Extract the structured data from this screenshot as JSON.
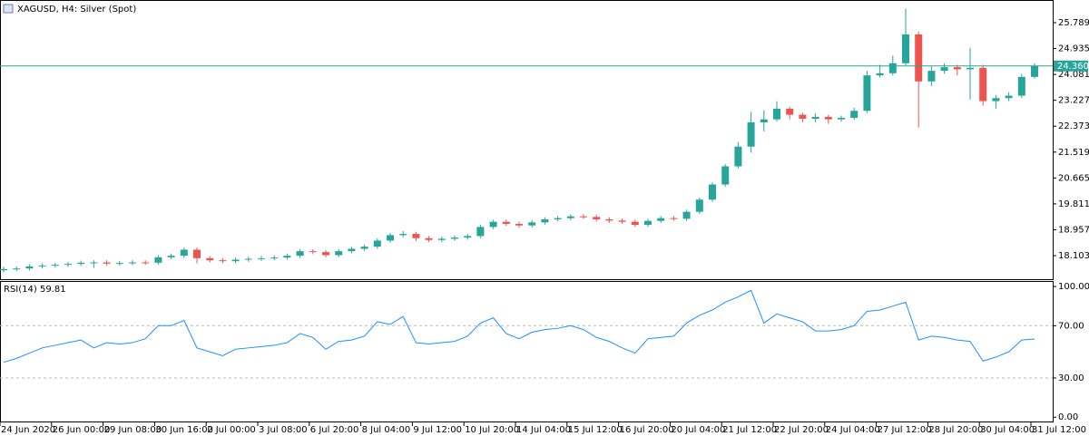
{
  "chart_data": [
    {
      "type": "candlestick",
      "title": "XAGUSD, H4:  Silver (Spot)",
      "categories": [
        "24 Jun 2020",
        null,
        null,
        null,
        "26 Jun 00:00",
        null,
        null,
        null,
        "29 Jun 08:00",
        null,
        null,
        null,
        "30 Jun 16:00",
        null,
        null,
        null,
        "2 Jul 00:00",
        null,
        null,
        null,
        "3 Jul 08:00",
        null,
        null,
        null,
        "6 Jul 20:00",
        null,
        null,
        null,
        "8 Jul 04:00",
        null,
        null,
        null,
        "9 Jul 12:00",
        null,
        null,
        null,
        "10 Jul 20:00",
        null,
        null,
        null,
        "14 Jul 04:00",
        null,
        null,
        null,
        "15 Jul 12:00",
        null,
        null,
        null,
        "16 Jul 20:00",
        null,
        null,
        null,
        "20 Jul 04:00",
        null,
        null,
        null,
        "21 Jul 12:00",
        null,
        null,
        null,
        "22 Jul 20:00",
        null,
        null,
        null,
        "24 Jul 04:00",
        null,
        null,
        null,
        "27 Jul 12:00",
        null,
        null,
        null,
        "28 Jul 20:00",
        null,
        null,
        null,
        "30 Jul 04:00",
        null,
        null,
        null,
        "31 Jul 12:00"
      ],
      "open": [
        17.62,
        17.66,
        17.68,
        17.75,
        17.78,
        17.8,
        17.83,
        17.87,
        17.88,
        17.84,
        17.86,
        17.88,
        17.87,
        18.05,
        18.1,
        18.3,
        18.02,
        17.95,
        17.92,
        17.97,
        18.0,
        18.02,
        18.04,
        18.1,
        18.25,
        18.22,
        18.12,
        18.25,
        18.33,
        18.4,
        18.6,
        18.78,
        18.82,
        18.68,
        18.62,
        18.66,
        18.7,
        18.75,
        19.05,
        19.22,
        19.15,
        19.1,
        19.2,
        19.3,
        19.34,
        19.4,
        19.38,
        19.3,
        19.26,
        19.22,
        19.12,
        19.25,
        19.34,
        19.32,
        19.55,
        19.95,
        20.45,
        21.05,
        21.7,
        22.5,
        22.6,
        22.95,
        22.75,
        22.62,
        22.68,
        22.6,
        22.65,
        22.88,
        24.05,
        24.12,
        24.45,
        25.4,
        23.85,
        24.2,
        24.32,
        24.25,
        24.3,
        23.2,
        23.3,
        23.38,
        24.0
      ],
      "high": [
        17.73,
        17.75,
        17.82,
        17.85,
        17.87,
        17.9,
        17.94,
        17.95,
        17.95,
        17.93,
        17.95,
        17.95,
        18.12,
        18.17,
        18.37,
        18.37,
        18.09,
        18.02,
        18.04,
        18.07,
        18.09,
        18.11,
        18.17,
        18.32,
        18.32,
        18.29,
        18.32,
        18.4,
        18.47,
        18.67,
        18.85,
        18.92,
        18.89,
        18.75,
        18.73,
        18.77,
        18.82,
        19.12,
        19.29,
        19.29,
        19.22,
        19.27,
        19.37,
        19.41,
        19.47,
        19.47,
        19.45,
        19.37,
        19.33,
        19.29,
        19.32,
        19.41,
        19.41,
        19.62,
        20.02,
        20.52,
        21.12,
        21.85,
        22.85,
        22.9,
        23.2,
        23.02,
        22.82,
        22.8,
        22.75,
        22.72,
        22.98,
        24.2,
        24.4,
        24.7,
        26.25,
        25.5,
        24.35,
        24.45,
        24.4,
        24.95,
        24.4,
        23.4,
        23.5,
        24.1,
        24.45
      ],
      "low": [
        17.55,
        17.59,
        17.61,
        17.68,
        17.71,
        17.73,
        17.76,
        17.7,
        17.77,
        17.77,
        17.79,
        17.8,
        17.8,
        17.98,
        18.03,
        17.85,
        17.88,
        17.85,
        17.85,
        17.9,
        17.93,
        17.95,
        17.97,
        18.03,
        18.15,
        18.05,
        18.05,
        18.18,
        18.26,
        18.33,
        18.53,
        18.71,
        18.58,
        18.55,
        18.55,
        18.59,
        18.63,
        18.68,
        18.98,
        19.08,
        19.03,
        19.03,
        19.13,
        19.23,
        19.27,
        19.31,
        19.23,
        19.19,
        19.15,
        19.05,
        19.05,
        19.18,
        19.25,
        19.25,
        19.48,
        19.88,
        20.38,
        20.98,
        21.5,
        22.2,
        22.53,
        22.6,
        22.5,
        22.5,
        22.45,
        22.53,
        22.58,
        22.81,
        23.98,
        24.05,
        24.38,
        22.33,
        23.7,
        24.1,
        24.05,
        23.25,
        23.05,
        22.95,
        23.2,
        23.3,
        23.95
      ],
      "close": [
        17.66,
        17.68,
        17.75,
        17.78,
        17.8,
        17.83,
        17.87,
        17.88,
        17.84,
        17.86,
        17.88,
        17.87,
        18.05,
        18.1,
        18.3,
        18.02,
        17.95,
        17.92,
        17.97,
        18.0,
        18.02,
        18.04,
        18.1,
        18.25,
        18.22,
        18.12,
        18.25,
        18.33,
        18.4,
        18.6,
        18.78,
        18.82,
        18.68,
        18.62,
        18.66,
        18.7,
        18.75,
        19.05,
        19.22,
        19.15,
        19.1,
        19.2,
        19.3,
        19.34,
        19.4,
        19.38,
        19.3,
        19.26,
        19.22,
        19.12,
        19.25,
        19.34,
        19.32,
        19.55,
        19.95,
        20.45,
        21.05,
        21.7,
        22.5,
        22.6,
        22.95,
        22.75,
        22.62,
        22.68,
        22.6,
        22.65,
        22.88,
        24.05,
        24.12,
        24.45,
        25.4,
        23.85,
        24.2,
        24.32,
        24.25,
        24.3,
        23.2,
        23.3,
        23.38,
        24.0,
        24.36
      ],
      "up_color": "#26a69a",
      "down_color": "#ef5350",
      "current_price": {
        "value": 24.36,
        "label": "24.360"
      },
      "current_price_color": "#26a69a",
      "ylim": [
        17.327,
        26.476
      ],
      "yticks": [
        25.789,
        24.935,
        24.081,
        23.227,
        22.373,
        21.519,
        20.665,
        19.811,
        18.957,
        18.103
      ]
    },
    {
      "type": "line",
      "name": "RSI(14)",
      "color": "#1e90ff",
      "values": [
        42,
        45,
        49,
        53,
        55,
        57,
        59,
        53,
        57,
        56,
        57,
        60,
        70,
        70,
        74,
        53,
        50,
        47,
        52,
        53,
        54,
        55,
        57,
        64,
        61,
        52,
        58,
        59,
        62,
        73,
        71,
        77,
        57,
        56,
        57,
        58,
        62,
        72,
        76,
        64,
        60,
        65,
        67,
        68,
        70,
        67,
        61,
        58,
        53,
        49,
        60,
        61,
        62,
        72,
        78,
        82,
        88,
        92,
        97,
        72,
        79,
        76,
        73,
        66,
        66,
        67,
        70,
        81,
        82,
        85,
        88,
        59,
        62,
        61,
        59,
        58,
        43,
        46,
        50,
        59,
        59.81
      ],
      "ylim": [
        -4,
        103.5
      ],
      "yticks": [
        {
          "value": 100,
          "label": "100.00"
        },
        {
          "value": 70,
          "label": "70.00"
        },
        {
          "value": 30,
          "label": "30.00"
        },
        {
          "value": 0,
          "label": "0.00"
        }
      ],
      "levels": [
        70,
        30
      ]
    }
  ]
}
